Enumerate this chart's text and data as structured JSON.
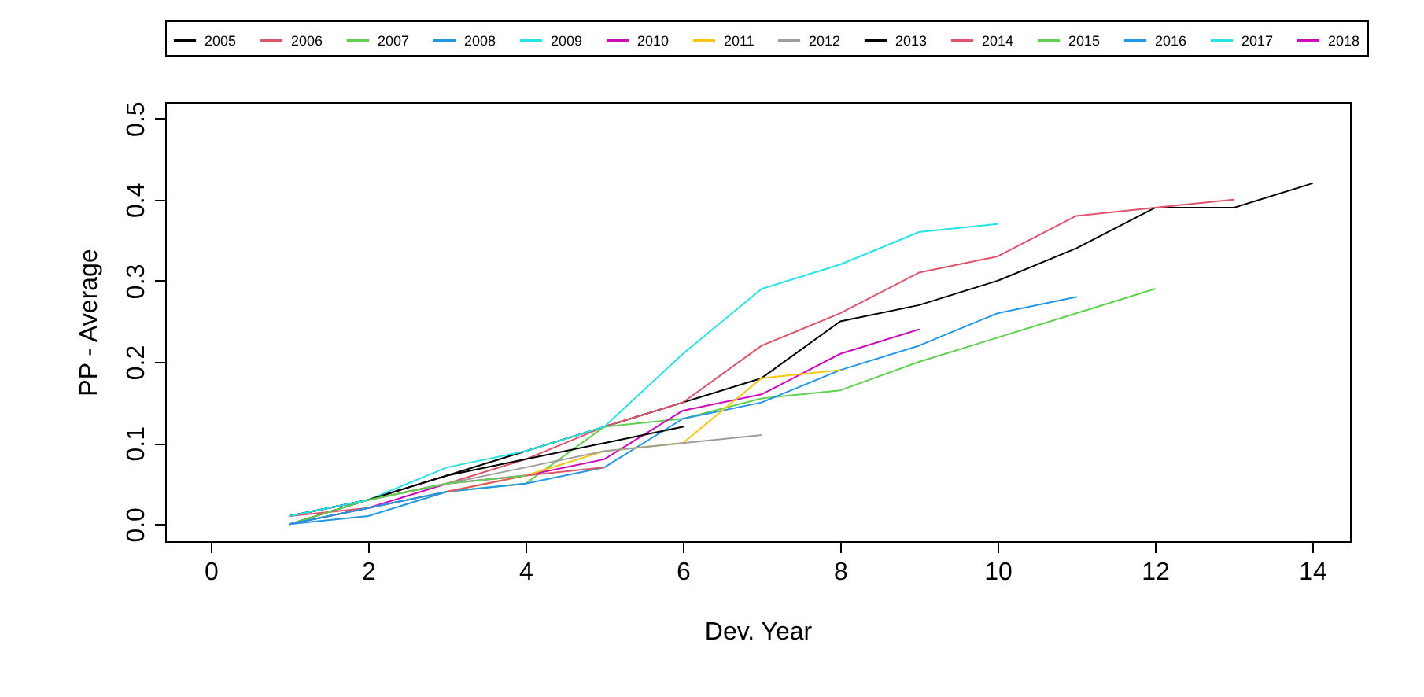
{
  "chart_data": {
    "type": "line",
    "xlabel": "Dev. Year",
    "ylabel": "PP - Average",
    "xlim": [
      -0.58,
      14.48
    ],
    "xticks": [
      0,
      2,
      4,
      6,
      8,
      10,
      12,
      14
    ],
    "ylim": [
      -0.021,
      0.52
    ],
    "yticks": [
      {
        "value": 0,
        "label": "0.0"
      },
      0.1,
      0.2,
      0.3,
      0.4,
      0.5
    ],
    "grid": false,
    "legend": "top",
    "marker": "none",
    "line_style": "solid",
    "series": [
      {
        "name": "2005",
        "color": "#000000",
        "x": [
          1,
          2,
          3,
          4,
          5,
          6,
          7,
          8,
          9,
          10,
          11,
          12,
          13,
          14
        ],
        "values": [
          0.0,
          0.03,
          0.06,
          0.09,
          0.12,
          0.15,
          0.18,
          0.25,
          0.27,
          0.3,
          0.34,
          0.39,
          0.39,
          0.42
        ]
      },
      {
        "name": "2006",
        "color": "#df536b",
        "x": [
          1,
          2,
          3,
          4,
          5,
          6,
          7,
          8,
          9,
          10,
          11,
          12,
          13
        ],
        "values": [
          0.01,
          0.03,
          0.05,
          0.08,
          0.12,
          0.15,
          0.22,
          0.26,
          0.31,
          0.33,
          0.38,
          0.39,
          0.4
        ]
      },
      {
        "name": "2007",
        "color": "#61d04f",
        "x": [
          1,
          2,
          3,
          4,
          5,
          6,
          7,
          8,
          9,
          10,
          11,
          12
        ],
        "values": [
          0.0,
          0.02,
          0.04,
          0.05,
          0.12,
          0.13,
          0.155,
          0.165,
          0.2,
          0.23,
          0.26,
          0.29
        ]
      },
      {
        "name": "2008",
        "color": "#2297e6",
        "x": [
          1,
          2,
          3,
          4,
          5,
          6,
          7,
          8,
          9,
          10,
          11
        ],
        "values": [
          0.0,
          0.01,
          0.04,
          0.05,
          0.07,
          0.13,
          0.15,
          0.19,
          0.22,
          0.26,
          0.28
        ]
      },
      {
        "name": "2009",
        "color": "#28e2e5",
        "x": [
          1,
          2,
          3,
          4,
          5,
          6,
          7,
          8,
          9,
          10
        ],
        "values": [
          0.01,
          0.03,
          0.07,
          0.09,
          0.12,
          0.21,
          0.29,
          0.32,
          0.36,
          0.37
        ]
      },
      {
        "name": "2010",
        "color": "#cd0bbc",
        "x": [
          1,
          2,
          3,
          4,
          5,
          6,
          7,
          8,
          9
        ],
        "values": [
          0.0,
          0.02,
          0.05,
          0.06,
          0.08,
          0.14,
          0.16,
          0.21,
          0.24
        ]
      },
      {
        "name": "2011",
        "color": "#f5c710",
        "x": [
          3,
          4,
          5,
          6,
          7,
          8
        ],
        "values": [
          0.04,
          0.06,
          0.09,
          0.1,
          0.18,
          0.19
        ]
      },
      {
        "name": "2012",
        "color": "#9e9e9e",
        "x": [
          1,
          2,
          3,
          4,
          5,
          6,
          7
        ],
        "values": [
          0.01,
          0.03,
          0.05,
          0.07,
          0.09,
          0.1,
          0.11
        ]
      },
      {
        "name": "2013",
        "color": "#000000",
        "x": [
          1,
          2,
          3,
          4,
          5,
          6
        ],
        "values": [
          0.01,
          0.03,
          0.06,
          0.08,
          0.1,
          0.12
        ]
      },
      {
        "name": "2014",
        "color": "#df536b",
        "x": [
          1,
          2,
          3,
          4,
          5
        ],
        "values": [
          0.01,
          0.02,
          0.04,
          0.06,
          0.07
        ]
      },
      {
        "name": "2015",
        "color": "#61d04f",
        "x": [
          1,
          2,
          3,
          4
        ],
        "values": [
          0.0,
          0.03,
          0.05,
          0.06
        ]
      },
      {
        "name": "2016",
        "color": "#2297e6",
        "x": [
          1,
          2,
          3
        ],
        "values": [
          0.0,
          0.02,
          0.04
        ]
      },
      {
        "name": "2017",
        "color": "#28e2e5",
        "x": [
          1,
          2
        ],
        "values": [
          0.01,
          0.03
        ]
      },
      {
        "name": "2018",
        "color": "#cd0bbc"
      }
    ]
  }
}
